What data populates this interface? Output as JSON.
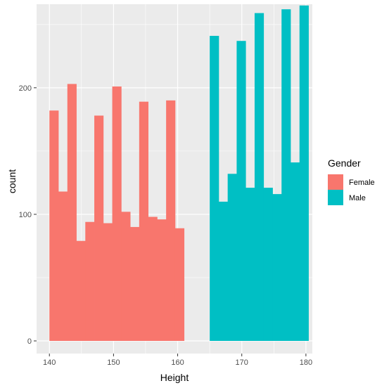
{
  "chart_data": {
    "type": "bar",
    "subtype": "histogram",
    "xlabel": "Height",
    "ylabel": "count",
    "xlim": [
      138,
      181
    ],
    "ylim": [
      -10,
      266
    ],
    "xticks": [
      140,
      150,
      160,
      170,
      180
    ],
    "yticks": [
      0,
      100,
      200
    ],
    "grid": true,
    "background": "#ebebeb",
    "legend": {
      "title": "Gender",
      "position": "right",
      "entries": [
        {
          "label": "Female",
          "color": "#f8766d"
        },
        {
          "label": "Male",
          "color": "#00bfc4"
        }
      ]
    },
    "series": [
      {
        "name": "Female",
        "color": "#f8766d",
        "bin_edges": [
          140.0,
          141.4,
          142.8,
          144.2,
          145.6,
          147.0,
          148.4,
          149.8,
          151.2,
          152.6,
          154.0,
          155.4,
          156.8,
          158.2,
          159.6
        ],
        "bin_width": 1.4,
        "values": [
          182,
          118,
          203,
          79,
          94,
          178,
          93,
          201,
          102,
          90,
          189,
          98,
          96,
          190,
          89
        ]
      },
      {
        "name": "Male",
        "color": "#00bfc4",
        "bin_edges": [
          165.0,
          166.4,
          167.8,
          169.2,
          170.6,
          172.0,
          173.4,
          174.8,
          176.2,
          177.6,
          179.0
        ],
        "bin_width": 1.4,
        "values": [
          241,
          110,
          132,
          237,
          121,
          259,
          121,
          116,
          262,
          141,
          265
        ]
      }
    ]
  }
}
